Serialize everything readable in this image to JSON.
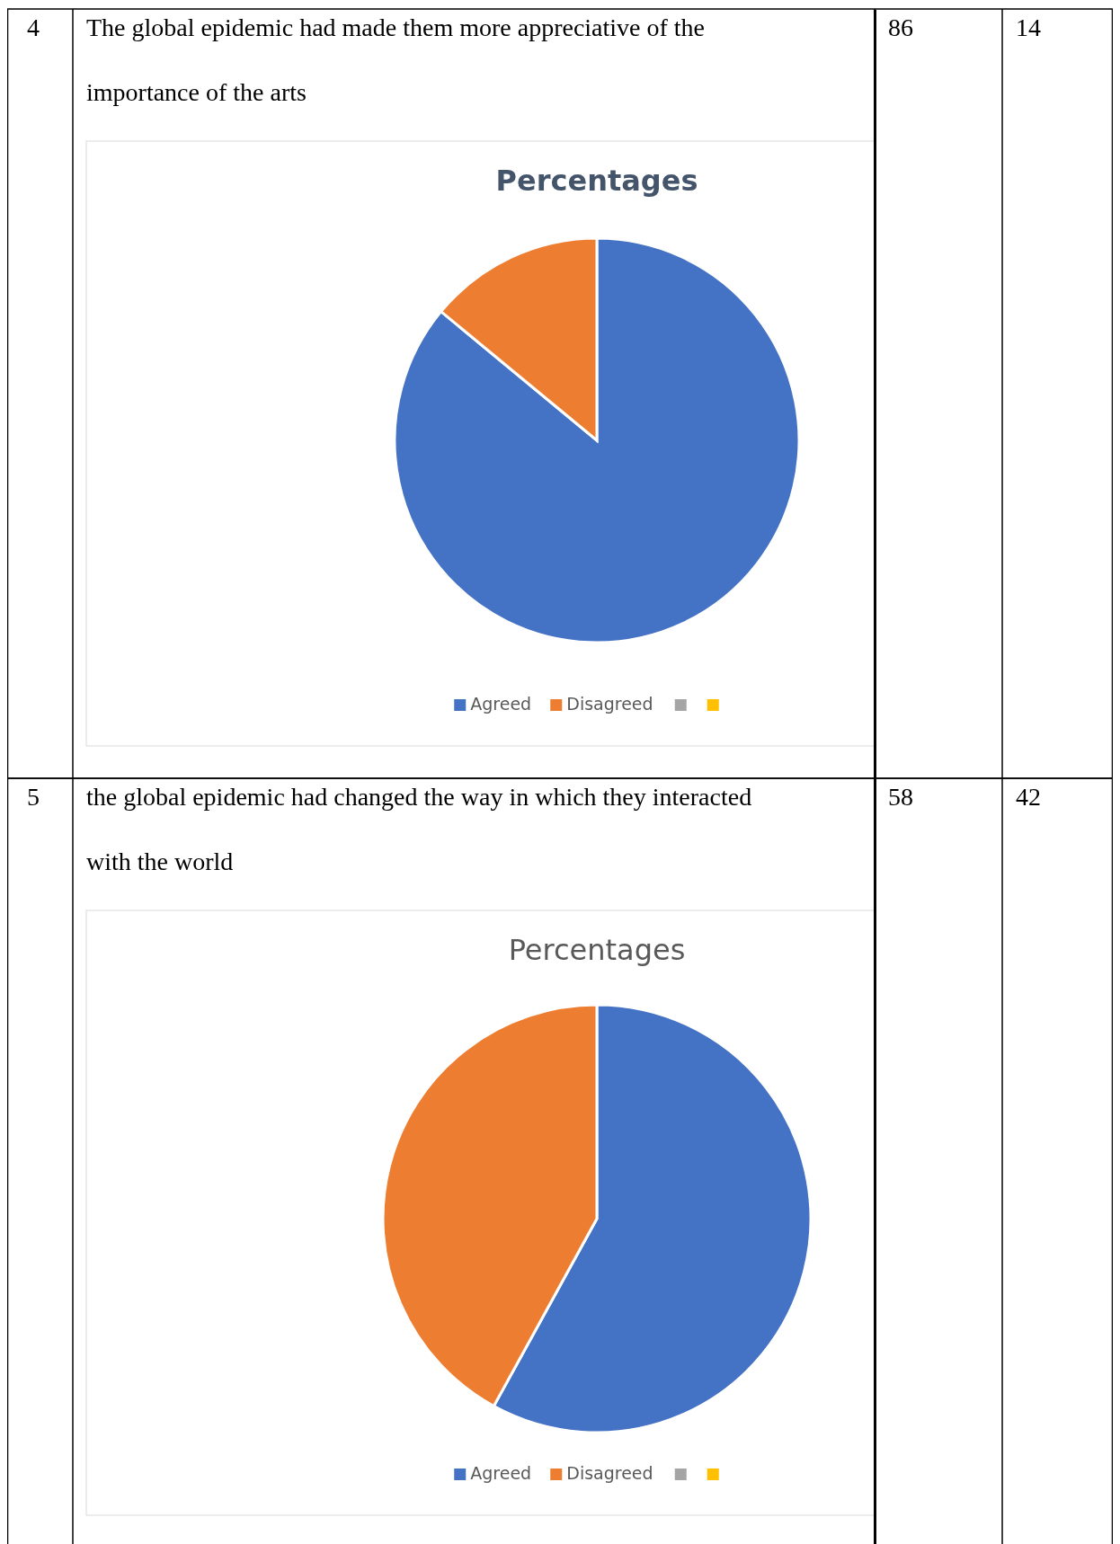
{
  "chart_data": [
    {
      "type": "pie",
      "title": "Percentages",
      "categories": [
        "Agreed",
        "Disagreed",
        null,
        null
      ],
      "values": [
        86,
        14,
        0,
        0
      ],
      "colors": [
        "#4472c4",
        "#ed7d31",
        "#a5a5a5",
        "#ffc000"
      ],
      "legend": "bottom",
      "annotations": [
        "4",
        "The global epidemic had made them more appreciative of the importance of the arts",
        "86",
        "14"
      ]
    },
    {
      "type": "pie",
      "title": "Percentages",
      "categories": [
        "Agreed",
        "Disagreed",
        null,
        null
      ],
      "values": [
        58,
        42,
        0,
        0
      ],
      "colors": [
        "#4472c4",
        "#ed7d31",
        "#a5a5a5",
        "#ffc000"
      ],
      "legend": "bottom",
      "annotations": [
        "5",
        "the global epidemic had changed the way in which they interacted with the world",
        "58",
        "42"
      ]
    }
  ]
}
